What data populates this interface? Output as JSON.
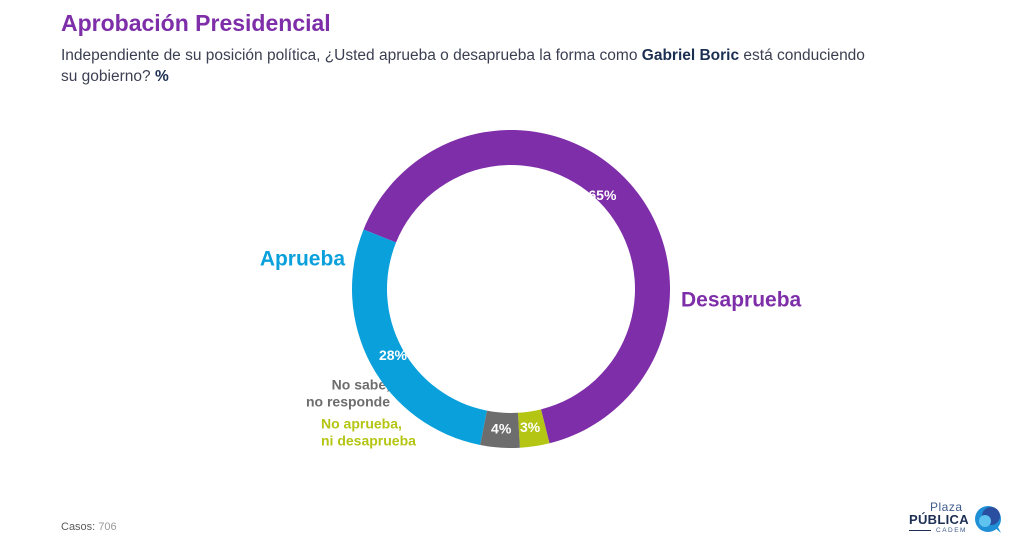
{
  "header": {
    "title": "Aprobación Presidencial",
    "subtitle_part1": "Independiente de su posición política, ¿Usted aprueba o desaprueba la forma como ",
    "subtitle_bold_name": "Gabriel Boric",
    "subtitle_part2": " está conduciendo su gobierno? ",
    "subtitle_bold_unit": "%"
  },
  "chart_data": {
    "type": "pie",
    "donut": true,
    "series": [
      {
        "name": "Desaprueba",
        "value": 65,
        "label": "65%",
        "color": "#7e2ea8",
        "label_color": "#7e2ea8"
      },
      {
        "name": "No aprueba, ni desaprueba",
        "value": 3,
        "label": "3%",
        "color": "#b4c514",
        "label_color": "#b4c514"
      },
      {
        "name": "No sabe, no responde",
        "value": 4,
        "label": "4%",
        "color": "#6d6d6d",
        "label_color": "#6d6d6d"
      },
      {
        "name": "Aprueba",
        "value": 28,
        "label": "28%",
        "color": "#0aa0dc",
        "label_color": "#0aa0dc"
      }
    ]
  },
  "footer": {
    "casos_label": "Casos:",
    "casos_value": "706"
  },
  "logo": {
    "line1": "Plaza",
    "line2": "PÚBLICA",
    "line3": "CADEM"
  }
}
